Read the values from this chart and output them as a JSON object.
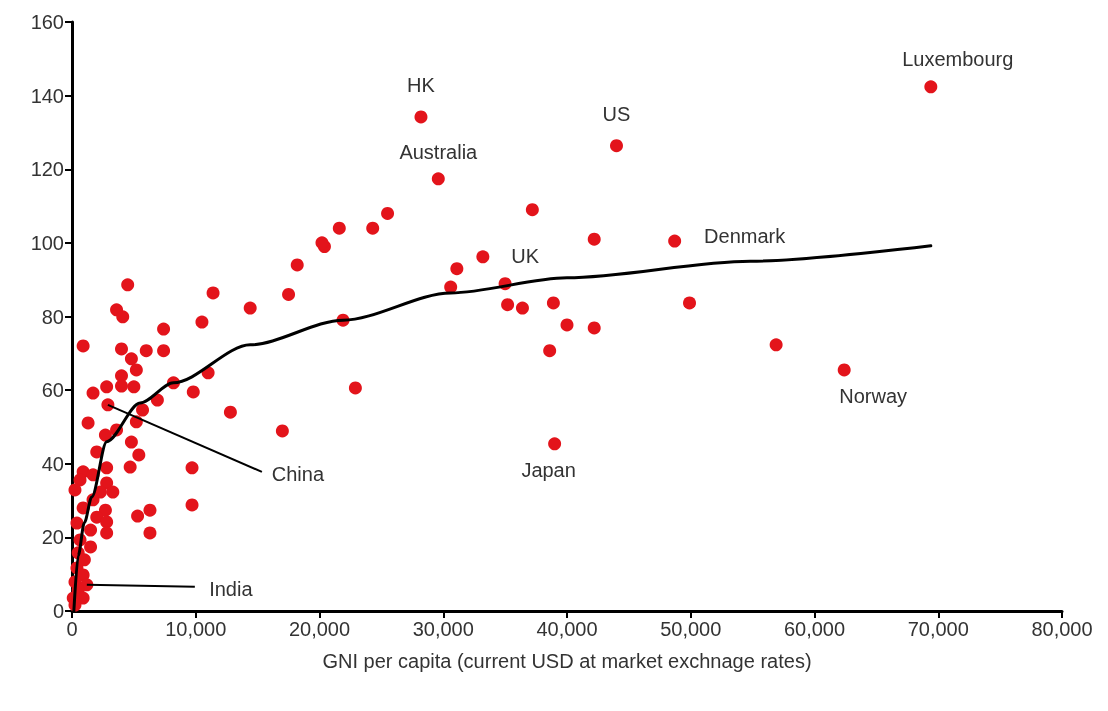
{
  "chart_data": {
    "type": "scatter",
    "xlabel": "GNI per capita (current USD at market exchnage rates)",
    "marker": "circle",
    "grid": false,
    "xlim": [
      0,
      80000
    ],
    "xticks": [
      0,
      {
        "value": 10000,
        "label": "10,000"
      },
      {
        "value": 20000,
        "label": "20,000"
      },
      {
        "value": 30000,
        "label": "30,000"
      },
      {
        "value": 40000,
        "label": "40,000"
      },
      {
        "value": 50000,
        "label": "50,000"
      },
      {
        "value": 60000,
        "label": "60,000"
      },
      {
        "value": 70000,
        "label": "70,000"
      },
      {
        "value": 80000,
        "label": "80,000"
      }
    ],
    "ylim": [
      0,
      160
    ],
    "yticks": [
      0,
      20,
      40,
      60,
      80,
      100,
      120,
      140,
      160
    ],
    "series": [
      {
        "type": "scatter",
        "color": "#e3141b",
        "x": [
          69400,
          44000,
          28200,
          29600,
          48700,
          35000,
          62400,
          39000,
          37200,
          25500,
          24300,
          21600,
          20400,
          20200,
          18200,
          17500,
          14400,
          42200,
          33200,
          31100,
          30600,
          35200,
          36400,
          38900,
          40000,
          42200,
          38600,
          49900,
          21900,
          22900,
          17000,
          56900,
          4500,
          11400,
          3600,
          4100,
          10500,
          7400,
          900,
          4000,
          6000,
          7400,
          4800,
          5200,
          4000,
          11000,
          8200,
          5000,
          4000,
          2800,
          1700,
          9800,
          6900,
          2900,
          5700,
          12800,
          1300,
          5200,
          3600,
          2700,
          4800,
          2000,
          5400,
          4700,
          9700,
          2800,
          900,
          1700,
          650,
          2800,
          240,
          2300,
          3300,
          1700,
          9700,
          900,
          2700,
          6300,
          5300,
          2000,
          2800,
          400,
          1500,
          2800,
          6300,
          650,
          1500,
          500,
          1000,
          400,
          900,
          240,
          1200,
          500,
          100,
          900,
          240
        ],
        "values": [
          142.4,
          126.4,
          134.2,
          117.4,
          100.5,
          88.9,
          65.5,
          45.4,
          109,
          108,
          104,
          104,
          99,
          100,
          94,
          86,
          82.3,
          101,
          96.2,
          93,
          88,
          83.2,
          82.3,
          83.7,
          77.7,
          76.9,
          70.7,
          83.7,
          79,
          60.6,
          48.9,
          72.3,
          88.6,
          86.4,
          81.8,
          79.9,
          78.5,
          76.6,
          72,
          71.2,
          70.7,
          70.7,
          68.5,
          65.5,
          63.9,
          64.7,
          62,
          60.9,
          61.1,
          60.9,
          59.2,
          59.5,
          57.3,
          56,
          54.6,
          54,
          51.1,
          51.4,
          49.2,
          47.8,
          45.9,
          43.2,
          42.4,
          39.1,
          38.9,
          38.9,
          37.8,
          37,
          35.6,
          34.8,
          32.9,
          32.3,
          32.3,
          30.2,
          28.8,
          28,
          27.4,
          27.4,
          25.8,
          25.5,
          24.2,
          23.9,
          22,
          21.2,
          21.2,
          19.3,
          17.4,
          15.8,
          13.9,
          11.7,
          9.8,
          7.9,
          7.1,
          5.7,
          3.5,
          3.5,
          1.6
        ]
      },
      {
        "type": "line",
        "color": "#000000",
        "marker": "none",
        "x": [
          150,
          500,
          1000,
          1600,
          2800,
          5500,
          8200,
          14400,
          21900,
          30600,
          40000,
          54800,
          69400
        ],
        "values": [
          0,
          15,
          24,
          31,
          46,
          56.5,
          62,
          72.3,
          79,
          86.4,
          90.5,
          95,
          99.2
        ]
      }
    ],
    "annotations": [
      {
        "text": "Luxembourg",
        "x": 69400,
        "y": 142.4
      },
      {
        "text": "US",
        "x": 44000,
        "y": 126.4
      },
      {
        "text": "HK",
        "x": 28200,
        "y": 134.2
      },
      {
        "text": "Australia",
        "x": 29600,
        "y": 117.4
      },
      {
        "text": "Denmark",
        "x": 48700,
        "y": 100.5
      },
      {
        "text": "UK",
        "x": 35000,
        "y": 88.9
      },
      {
        "text": "Norway",
        "x": 62400,
        "y": 65.5
      },
      {
        "text": "Japan",
        "x": 39000,
        "y": 45.4
      },
      {
        "text": "China",
        "x": 2900,
        "y": 56
      },
      {
        "text": "India",
        "x": 1200,
        "y": 7.1
      }
    ]
  }
}
